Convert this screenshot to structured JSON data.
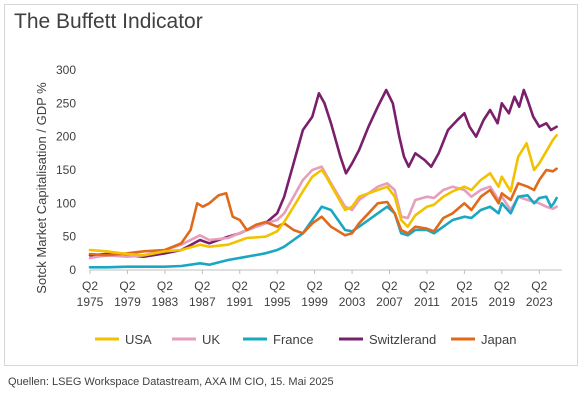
{
  "chart_data": {
    "type": "line",
    "title": "The Buffett Indicator",
    "ylabel": "Sotck Market Capitalisation / GDP %",
    "xlabel": "",
    "ylim": [
      0,
      300
    ],
    "yticks": [
      "0",
      "50",
      "100",
      "150",
      "200",
      "250",
      "300"
    ],
    "xlim": [
      1975.25,
      2025.25
    ],
    "xticks": [
      {
        "q": "Q2",
        "y": "1975",
        "v": 1975.25
      },
      {
        "q": "Q2",
        "y": "1979",
        "v": 1979.25
      },
      {
        "q": "Q2",
        "y": "1983",
        "v": 1983.25
      },
      {
        "q": "Q2",
        "y": "1987",
        "v": 1987.25
      },
      {
        "q": "Q2",
        "y": "1991",
        "v": 1991.25
      },
      {
        "q": "Q2",
        "y": "1995",
        "v": 1995.25
      },
      {
        "q": "Q2",
        "y": "1999",
        "v": 1999.25
      },
      {
        "q": "Q2",
        "y": "2003",
        "v": 2003.25
      },
      {
        "q": "Q2",
        "y": "2007",
        "v": 2007.25
      },
      {
        "q": "Q2",
        "y": "2011",
        "v": 2011.25
      },
      {
        "q": "Q2",
        "y": "2015",
        "v": 2015.25
      },
      {
        "q": "Q2",
        "y": "2019",
        "v": 2019.25
      },
      {
        "q": "Q2",
        "y": "2023",
        "v": 2023.25
      }
    ],
    "grid": false,
    "legend_position": "bottom",
    "series": [
      {
        "name": "USA",
        "color": "#F2C200",
        "points": [
          [
            1975.25,
            30
          ],
          [
            1977,
            28
          ],
          [
            1979.25,
            24
          ],
          [
            1981,
            22
          ],
          [
            1983.25,
            28
          ],
          [
            1985,
            30
          ],
          [
            1987,
            38
          ],
          [
            1988,
            35
          ],
          [
            1990,
            38
          ],
          [
            1992,
            48
          ],
          [
            1994,
            50
          ],
          [
            1995.25,
            58
          ],
          [
            1996,
            72
          ],
          [
            1997,
            95
          ],
          [
            1998,
            118
          ],
          [
            1999,
            140
          ],
          [
            2000,
            150
          ],
          [
            2000.5,
            140
          ],
          [
            2001.5,
            115
          ],
          [
            2002.5,
            90
          ],
          [
            2003.25,
            95
          ],
          [
            2004,
            110
          ],
          [
            2005,
            115
          ],
          [
            2006,
            120
          ],
          [
            2007,
            125
          ],
          [
            2007.8,
            110
          ],
          [
            2008.5,
            75
          ],
          [
            2009.2,
            65
          ],
          [
            2010,
            82
          ],
          [
            2011.25,
            95
          ],
          [
            2012,
            98
          ],
          [
            2013,
            110
          ],
          [
            2014,
            118
          ],
          [
            2015.25,
            125
          ],
          [
            2016,
            120
          ],
          [
            2017,
            135
          ],
          [
            2018,
            145
          ],
          [
            2018.9,
            125
          ],
          [
            2019.25,
            140
          ],
          [
            2020.2,
            118
          ],
          [
            2021,
            170
          ],
          [
            2021.9,
            190
          ],
          [
            2022.7,
            150
          ],
          [
            2023.25,
            160
          ],
          [
            2024,
            178
          ],
          [
            2024.7,
            195
          ],
          [
            2025.1,
            202
          ]
        ]
      },
      {
        "name": "UK",
        "color": "#E59EBB",
        "points": [
          [
            1975.25,
            18
          ],
          [
            1977,
            22
          ],
          [
            1979.25,
            20
          ],
          [
            1981,
            22
          ],
          [
            1983.25,
            30
          ],
          [
            1985,
            38
          ],
          [
            1987,
            52
          ],
          [
            1988,
            45
          ],
          [
            1990,
            48
          ],
          [
            1992,
            60
          ],
          [
            1994,
            70
          ],
          [
            1995.25,
            75
          ],
          [
            1996,
            85
          ],
          [
            1997,
            110
          ],
          [
            1998,
            135
          ],
          [
            1999,
            150
          ],
          [
            2000,
            155
          ],
          [
            2001,
            130
          ],
          [
            2002.5,
            95
          ],
          [
            2003.25,
            90
          ],
          [
            2004,
            105
          ],
          [
            2005,
            115
          ],
          [
            2006,
            125
          ],
          [
            2007,
            130
          ],
          [
            2007.8,
            120
          ],
          [
            2008.5,
            80
          ],
          [
            2009.2,
            78
          ],
          [
            2010,
            105
          ],
          [
            2011.25,
            110
          ],
          [
            2012,
            108
          ],
          [
            2013,
            120
          ],
          [
            2014,
            125
          ],
          [
            2015.25,
            120
          ],
          [
            2016,
            110
          ],
          [
            2017,
            120
          ],
          [
            2018,
            125
          ],
          [
            2018.9,
            105
          ],
          [
            2019.25,
            110
          ],
          [
            2020.2,
            90
          ],
          [
            2021,
            110
          ],
          [
            2022,
            105
          ],
          [
            2023.25,
            100
          ],
          [
            2024,
            95
          ],
          [
            2024.7,
            92
          ],
          [
            2025.1,
            95
          ]
        ]
      },
      {
        "name": "France",
        "color": "#1AA7C2",
        "points": [
          [
            1975.25,
            4
          ],
          [
            1977,
            4
          ],
          [
            1979.25,
            5
          ],
          [
            1981,
            5
          ],
          [
            1983.25,
            5
          ],
          [
            1985,
            6
          ],
          [
            1987,
            10
          ],
          [
            1988,
            8
          ],
          [
            1990,
            15
          ],
          [
            1992,
            20
          ],
          [
            1994,
            25
          ],
          [
            1995.25,
            30
          ],
          [
            1996,
            35
          ],
          [
            1997,
            45
          ],
          [
            1998,
            55
          ],
          [
            1999,
            75
          ],
          [
            2000,
            95
          ],
          [
            2001,
            90
          ],
          [
            2002.5,
            60
          ],
          [
            2003.25,
            58
          ],
          [
            2004,
            65
          ],
          [
            2005,
            75
          ],
          [
            2006,
            85
          ],
          [
            2007,
            95
          ],
          [
            2007.8,
            85
          ],
          [
            2008.5,
            55
          ],
          [
            2009.2,
            52
          ],
          [
            2010,
            60
          ],
          [
            2011.25,
            60
          ],
          [
            2012,
            55
          ],
          [
            2013,
            65
          ],
          [
            2014,
            75
          ],
          [
            2015.25,
            80
          ],
          [
            2016,
            78
          ],
          [
            2017,
            90
          ],
          [
            2018,
            95
          ],
          [
            2018.9,
            85
          ],
          [
            2019.25,
            100
          ],
          [
            2020.2,
            85
          ],
          [
            2021,
            110
          ],
          [
            2022,
            112
          ],
          [
            2022.7,
            100
          ],
          [
            2023.25,
            108
          ],
          [
            2024,
            110
          ],
          [
            2024.5,
            95
          ],
          [
            2024.8,
            100
          ],
          [
            2025.1,
            108
          ]
        ]
      },
      {
        "name": "Switzlerand",
        "color": "#7A1F6B",
        "points": [
          [
            1975.25,
            22
          ],
          [
            1977,
            24
          ],
          [
            1979.25,
            22
          ],
          [
            1981,
            20
          ],
          [
            1983.25,
            25
          ],
          [
            1985,
            30
          ],
          [
            1987,
            45
          ],
          [
            1988,
            40
          ],
          [
            1990,
            50
          ],
          [
            1991.25,
            55
          ],
          [
            1992,
            60
          ],
          [
            1994,
            70
          ],
          [
            1995.25,
            85
          ],
          [
            1996,
            110
          ],
          [
            1997,
            160
          ],
          [
            1998,
            210
          ],
          [
            1999,
            230
          ],
          [
            1999.7,
            265
          ],
          [
            2000.3,
            250
          ],
          [
            2001,
            220
          ],
          [
            2002,
            170
          ],
          [
            2002.6,
            145
          ],
          [
            2003.25,
            160
          ],
          [
            2004,
            180
          ],
          [
            2005,
            215
          ],
          [
            2006,
            245
          ],
          [
            2006.9,
            270
          ],
          [
            2007.6,
            250
          ],
          [
            2008.3,
            200
          ],
          [
            2008.8,
            170
          ],
          [
            2009.3,
            155
          ],
          [
            2010,
            175
          ],
          [
            2011,
            165
          ],
          [
            2011.7,
            155
          ],
          [
            2012.5,
            175
          ],
          [
            2013.5,
            210
          ],
          [
            2014.5,
            225
          ],
          [
            2015.25,
            235
          ],
          [
            2015.8,
            215
          ],
          [
            2016.5,
            200
          ],
          [
            2017.3,
            225
          ],
          [
            2018,
            240
          ],
          [
            2018.8,
            220
          ],
          [
            2019.25,
            250
          ],
          [
            2020,
            235
          ],
          [
            2020.6,
            260
          ],
          [
            2021.1,
            245
          ],
          [
            2021.6,
            270
          ],
          [
            2022,
            255
          ],
          [
            2022.6,
            230
          ],
          [
            2023.25,
            215
          ],
          [
            2024,
            220
          ],
          [
            2024.5,
            210
          ],
          [
            2025.1,
            215
          ]
        ]
      },
      {
        "name": "Japan",
        "color": "#E06A1B",
        "points": [
          [
            1975.25,
            24
          ],
          [
            1977,
            22
          ],
          [
            1979.25,
            25
          ],
          [
            1981,
            28
          ],
          [
            1983.25,
            30
          ],
          [
            1985,
            40
          ],
          [
            1986,
            60
          ],
          [
            1986.7,
            100
          ],
          [
            1987.3,
            95
          ],
          [
            1988,
            100
          ],
          [
            1989,
            112
          ],
          [
            1989.8,
            115
          ],
          [
            1990.5,
            80
          ],
          [
            1991.25,
            75
          ],
          [
            1992,
            60
          ],
          [
            1993,
            68
          ],
          [
            1994,
            72
          ],
          [
            1995.25,
            65
          ],
          [
            1996,
            70
          ],
          [
            1997,
            60
          ],
          [
            1998,
            55
          ],
          [
            1999,
            70
          ],
          [
            2000,
            80
          ],
          [
            2001,
            65
          ],
          [
            2002.5,
            52
          ],
          [
            2003.25,
            55
          ],
          [
            2004,
            70
          ],
          [
            2005,
            85
          ],
          [
            2006,
            100
          ],
          [
            2007,
            102
          ],
          [
            2007.8,
            85
          ],
          [
            2008.5,
            60
          ],
          [
            2009.2,
            55
          ],
          [
            2010,
            65
          ],
          [
            2011.25,
            62
          ],
          [
            2012,
            58
          ],
          [
            2013,
            78
          ],
          [
            2014,
            85
          ],
          [
            2015.25,
            100
          ],
          [
            2016,
            90
          ],
          [
            2017,
            110
          ],
          [
            2018,
            120
          ],
          [
            2018.9,
            100
          ],
          [
            2019.25,
            115
          ],
          [
            2020.2,
            105
          ],
          [
            2021,
            130
          ],
          [
            2022,
            125
          ],
          [
            2022.7,
            120
          ],
          [
            2023.25,
            135
          ],
          [
            2024,
            150
          ],
          [
            2024.7,
            148
          ],
          [
            2025.1,
            152
          ]
        ]
      }
    ],
    "source": "Quellen: LSEG Workspace Datastream, AXA IM CIO, 15. Mai 2025"
  }
}
